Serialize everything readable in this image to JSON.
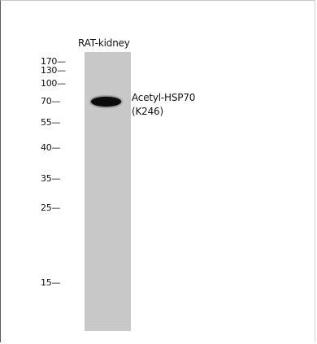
{
  "blot": {
    "sample_label": "RAT-kidney",
    "markers": [
      {
        "label": "170—",
        "kda": 170
      },
      {
        "label": "130—",
        "kda": 130
      },
      {
        "label": "100—",
        "kda": 100
      },
      {
        "label": "70—",
        "kda": 70
      },
      {
        "label": "55—",
        "kda": 55
      },
      {
        "label": "40—",
        "kda": 40
      },
      {
        "label": "35—",
        "kda": 35
      },
      {
        "label": "25—",
        "kda": 25
      },
      {
        "label": "15—",
        "kda": 15
      }
    ],
    "protein_label_line1": "Acetyl-HSP70",
    "protein_label_line2": "(K246)",
    "lane_color": "#c8c8c8",
    "band_color": "#0b0b0b"
  }
}
